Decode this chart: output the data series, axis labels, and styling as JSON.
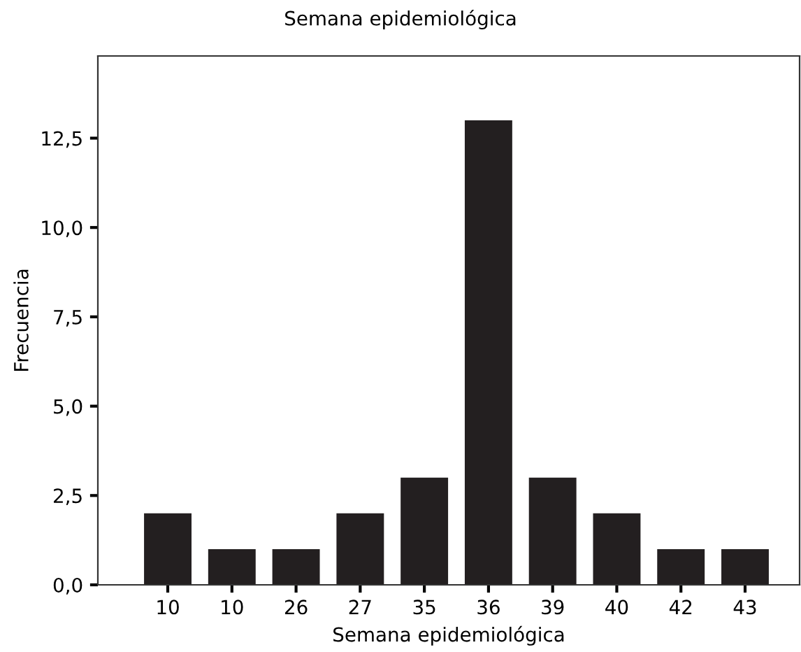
{
  "chart_data": {
    "type": "bar",
    "title": "Semana epidemiológica",
    "xlabel": "Semana epidemiológica",
    "ylabel": "Frecuencia",
    "categories": [
      "10",
      "10",
      "26",
      "27",
      "35",
      "36",
      "39",
      "40",
      "42",
      "43"
    ],
    "values": [
      2,
      1,
      1,
      2,
      3,
      13,
      3,
      2,
      1,
      1
    ],
    "color": "#231f20",
    "ylim": [
      0,
      14.8
    ],
    "yticks": [
      {
        "value": 0,
        "label": "0,0"
      },
      {
        "value": 2.5,
        "label": "2,5"
      },
      {
        "value": 5,
        "label": "5,0"
      },
      {
        "value": 7.5,
        "label": "7,5"
      },
      {
        "value": 10,
        "label": "10,0"
      },
      {
        "value": 12.5,
        "label": "12,5"
      }
    ],
    "grid": false
  }
}
